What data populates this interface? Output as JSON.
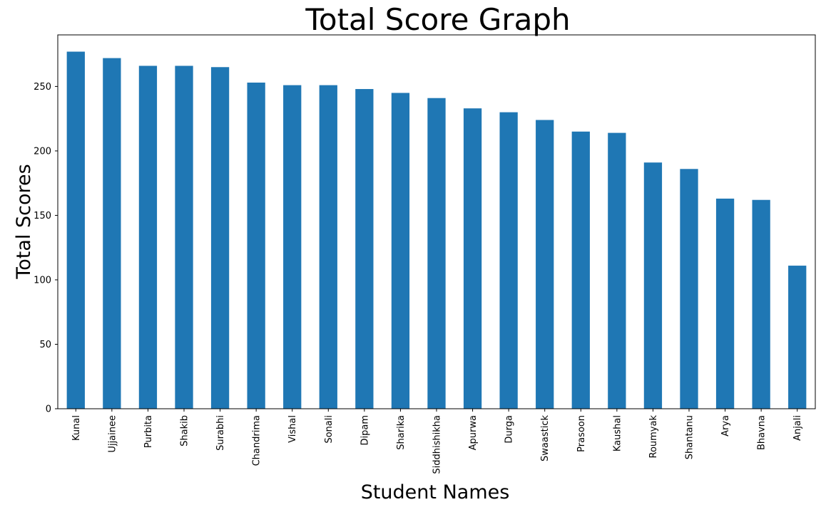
{
  "chart_data": {
    "type": "bar",
    "title": "Total Score Graph",
    "xlabel": "Student Names",
    "ylabel": "Total Scores",
    "categories": [
      "Kunal",
      "Ujjainee",
      "Purbita",
      "Shakib",
      "Surabhi",
      "Chandrima",
      "Vishal",
      "Sonali",
      "Dipam",
      "Sharika",
      "Siddhishikha",
      "Apurwa",
      "Durga",
      "Swaastick",
      "Prasoon",
      "Kaushal",
      "Roumyak",
      "Shantanu",
      "Arya",
      "Bhavna",
      "Anjali"
    ],
    "values": [
      277,
      272,
      266,
      266,
      265,
      253,
      251,
      251,
      248,
      245,
      241,
      233,
      230,
      224,
      215,
      214,
      191,
      186,
      163,
      162,
      111
    ],
    "yticks": [
      "0",
      "50",
      "100",
      "150",
      "200",
      "250"
    ],
    "ylim": [
      0,
      290
    ],
    "grid": false,
    "legend": "none",
    "colors": {
      "bar": "#1f77b4"
    }
  }
}
